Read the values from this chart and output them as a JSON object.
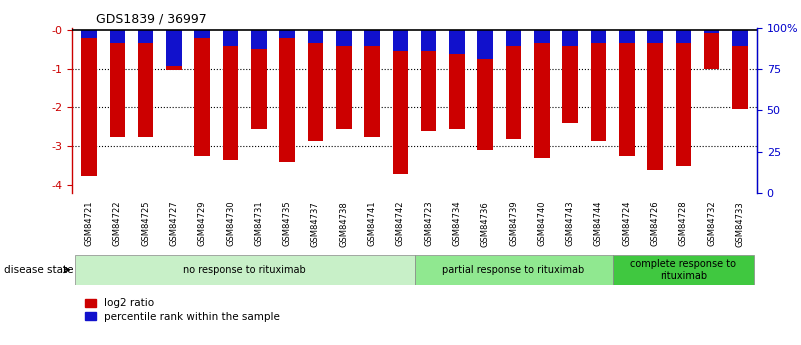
{
  "title": "GDS1839 / 36997",
  "samples": [
    "GSM84721",
    "GSM84722",
    "GSM84725",
    "GSM84727",
    "GSM84729",
    "GSM84730",
    "GSM84731",
    "GSM84735",
    "GSM84737",
    "GSM84738",
    "GSM84741",
    "GSM84742",
    "GSM84723",
    "GSM84734",
    "GSM84736",
    "GSM84739",
    "GSM84740",
    "GSM84743",
    "GSM84744",
    "GSM84724",
    "GSM84726",
    "GSM84728",
    "GSM84732",
    "GSM84733"
  ],
  "log2_ratio": [
    -3.75,
    -2.75,
    -2.75,
    -1.05,
    -3.25,
    -3.35,
    -2.55,
    -3.4,
    -2.85,
    -2.55,
    -2.75,
    -3.7,
    -2.6,
    -2.55,
    -3.1,
    -2.8,
    -3.3,
    -2.4,
    -2.85,
    -3.25,
    -3.6,
    -3.5,
    -1.0,
    -2.05
  ],
  "percentile_rank": [
    5,
    8,
    8,
    22,
    5,
    10,
    12,
    5,
    8,
    10,
    10,
    13,
    13,
    15,
    18,
    10,
    8,
    10,
    8,
    8,
    8,
    8,
    2,
    10
  ],
  "groups": [
    {
      "label": "no response to rituximab",
      "start": 0,
      "end": 12,
      "color": "#c8f0c8"
    },
    {
      "label": "partial response to rituximab",
      "start": 12,
      "end": 19,
      "color": "#90e890"
    },
    {
      "label": "complete response to\nrituximab",
      "start": 19,
      "end": 24,
      "color": "#40c840"
    }
  ],
  "ylim_left": [
    -4.2,
    0.05
  ],
  "ylim_right": [
    0,
    100
  ],
  "yticks_left": [
    0,
    -1,
    -2,
    -3,
    -4
  ],
  "yticks_right": [
    0,
    25,
    50,
    75,
    100
  ],
  "ytick_labels_left": [
    "-0",
    "-1",
    "-2",
    "-3",
    "-4"
  ],
  "ytick_labels_right": [
    "0",
    "25",
    "50",
    "75",
    "100%"
  ],
  "bar_color_red": "#cc0000",
  "bar_color_blue": "#1111cc",
  "background_color": "#ffffff",
  "tick_label_color_left": "#cc0000",
  "tick_label_color_right": "#0000cc",
  "disease_state_label": "disease state",
  "legend_red_label": "log2 ratio",
  "legend_blue_label": "percentile rank within the sample",
  "bar_width": 0.55,
  "pct_to_axis": 0.04
}
